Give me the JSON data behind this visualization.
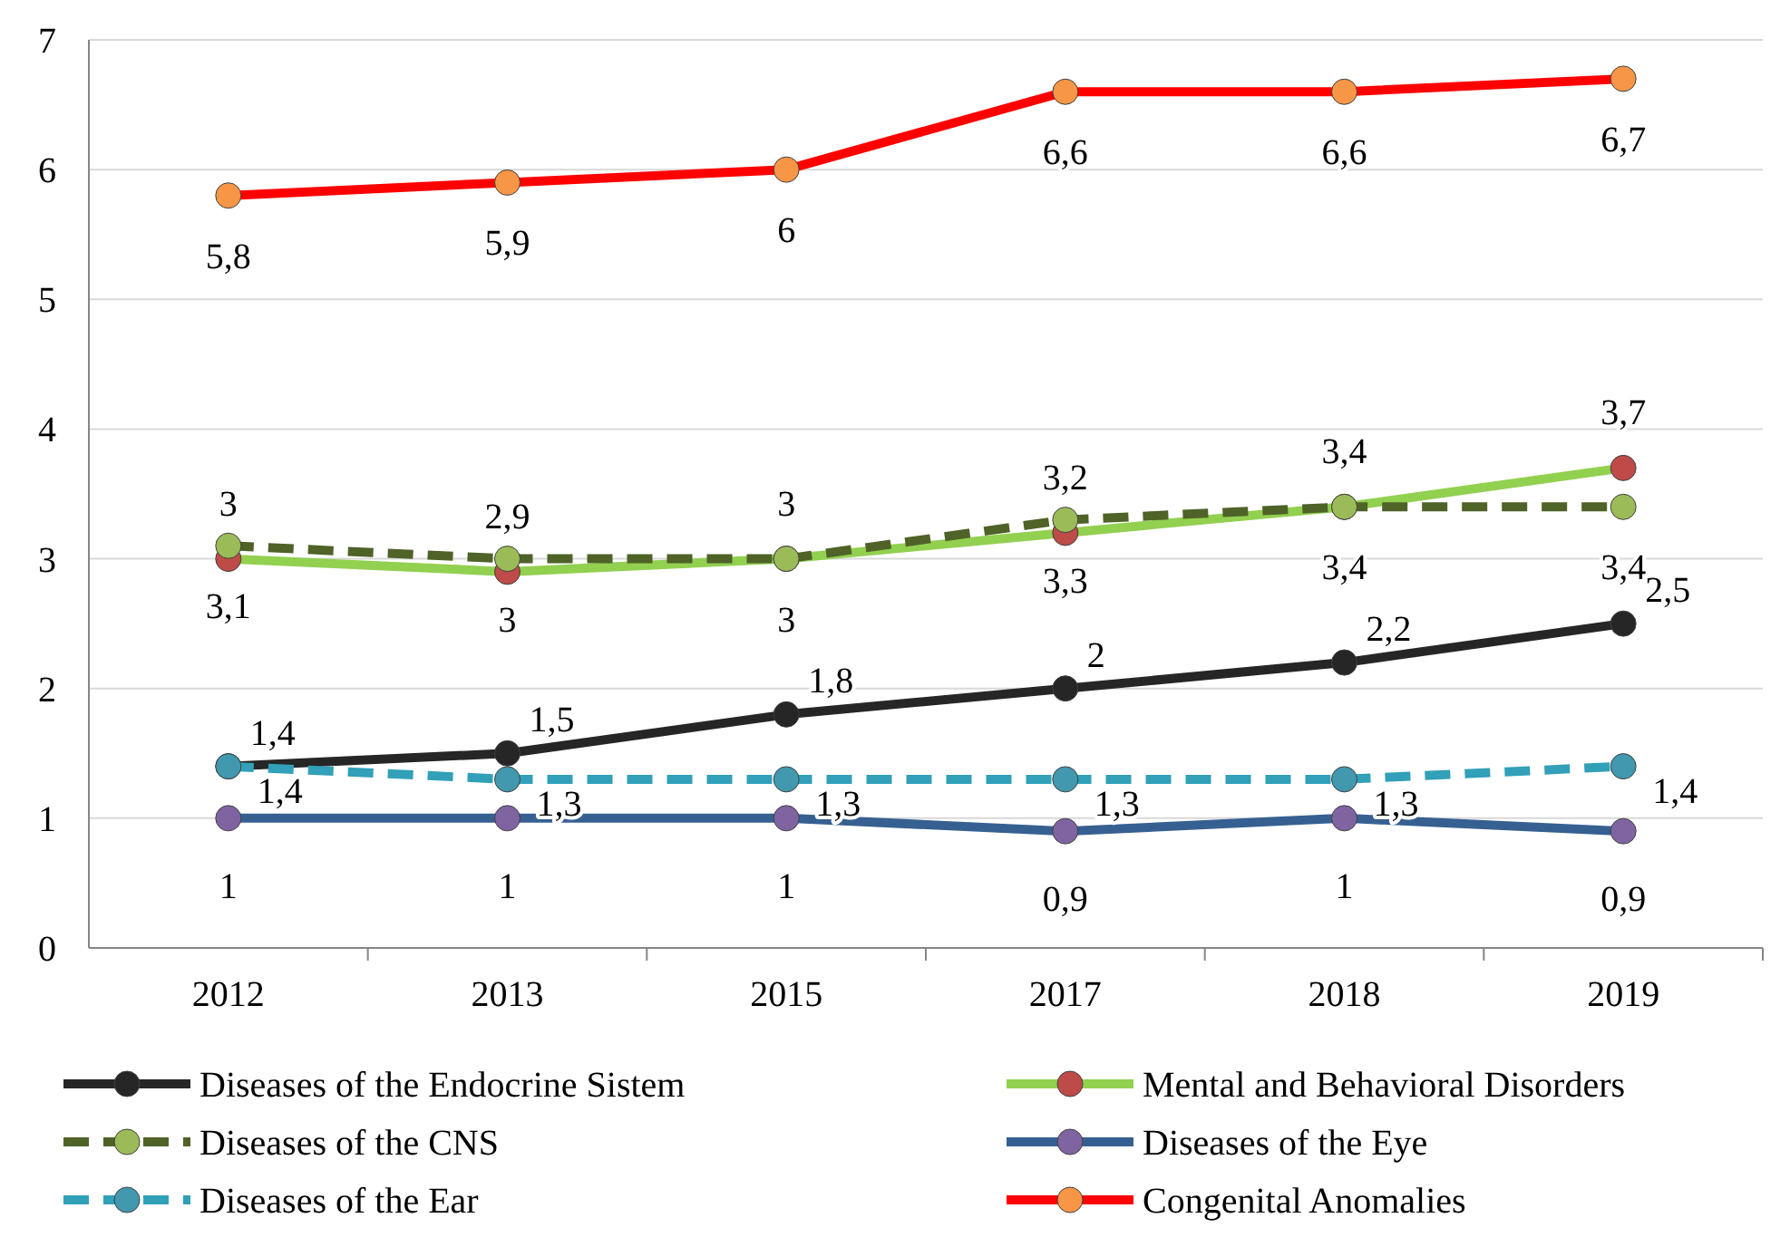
{
  "chart_data": {
    "type": "line",
    "categories": [
      "2012",
      "2013",
      "2015",
      "2017",
      "2018",
      "2019"
    ],
    "ylim": [
      0,
      7
    ],
    "yticks": [
      0,
      1,
      2,
      3,
      4,
      5,
      6,
      7
    ],
    "grid": "y",
    "legend": "bottom",
    "marker": "circle",
    "series": [
      {
        "name": "Diseases of the Endocrine Sistem",
        "color": "#262626",
        "colors": [
          "#262626",
          "#262626",
          "#262626",
          "#262626",
          "#262626",
          "#262626"
        ],
        "line_style": "solid",
        "values": [
          1.4,
          1.5,
          1.8,
          2,
          2.2,
          2.5
        ],
        "value_labels": [
          "1,4",
          "1,5",
          "1,8",
          "2",
          "2,2",
          "2,5"
        ]
      },
      {
        "name": "Mental and Behavioral Disorders",
        "color": "#92d050",
        "colors": [
          "#be4b48",
          "#be4b48",
          "#be4b48",
          "#be4b48",
          "#be4b48",
          "#be4b48"
        ],
        "line_style": "solid",
        "values": [
          3,
          2.9,
          3,
          3.2,
          3.4,
          3.7
        ],
        "value_labels": [
          "3",
          "2,9",
          "3",
          "3,2",
          "3,4",
          "3,7"
        ]
      },
      {
        "name": "Diseases of the CNS",
        "color": "#4f6228",
        "colors": [
          "#9bbb59",
          "#9bbb59",
          "#9bbb59",
          "#9bbb59",
          "#9bbb59",
          "#9bbb59"
        ],
        "line_style": "dashed",
        "values": [
          3.1,
          3,
          3,
          3.3,
          3.4,
          3.4
        ],
        "value_labels": [
          "3,1",
          "3",
          "3",
          "3,3",
          "3,4",
          "3,4"
        ]
      },
      {
        "name": "Diseases of the Eye",
        "color": "#376092",
        "colors": [
          "#8064a2",
          "#8064a2",
          "#8064a2",
          "#8064a2",
          "#8064a2",
          "#8064a2"
        ],
        "line_style": "solid",
        "values": [
          1,
          1,
          1,
          0.9,
          1,
          0.9
        ],
        "value_labels": [
          "1",
          "1",
          "1",
          "0,9",
          "1",
          "0,9"
        ]
      },
      {
        "name": "Diseases of the Ear",
        "color": "#31a0b8",
        "colors": [
          "#4198af",
          "#4198af",
          "#4198af",
          "#4198af",
          "#4198af",
          "#4198af"
        ],
        "line_style": "dashed",
        "values": [
          1.4,
          1.3,
          1.3,
          1.3,
          1.3,
          1.4
        ],
        "value_labels": [
          "1,4",
          "1,3",
          "1,3",
          "1,3",
          "1,3",
          "1,4"
        ]
      },
      {
        "name": "Congenital Anomalies",
        "color": "#ff0000",
        "colors": [
          "#f79646",
          "#f79646",
          "#f79646",
          "#f79646",
          "#f79646",
          "#f79646"
        ],
        "line_style": "solid",
        "values": [
          5.8,
          5.9,
          6,
          6.6,
          6.6,
          6.7
        ],
        "value_labels": [
          "5,8",
          "5,9",
          "6",
          "6,6",
          "6,6",
          "6,7"
        ]
      }
    ]
  }
}
